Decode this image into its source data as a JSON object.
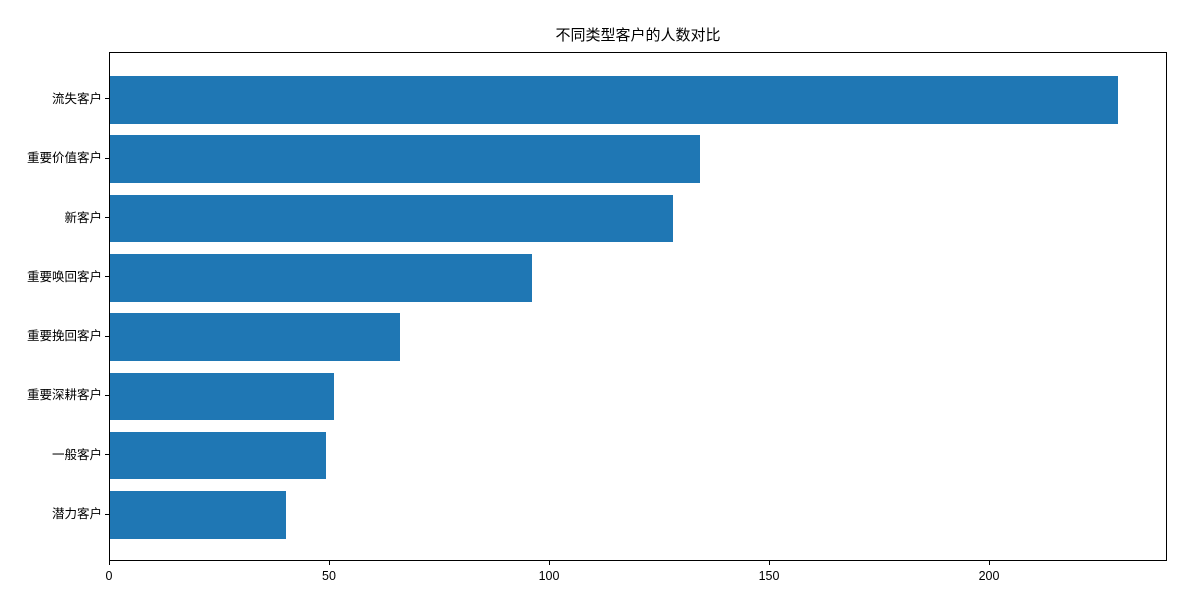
{
  "chart_data": {
    "type": "bar",
    "orientation": "horizontal",
    "title": "不同类型客户的人数对比",
    "categories": [
      "流失客户",
      "重要价值客户",
      "新客户",
      "重要唤回客户",
      "重要挽回客户",
      "重要深耕客户",
      "一般客户",
      "潜力客户"
    ],
    "values": [
      229,
      134,
      128,
      96,
      66,
      51,
      49,
      40
    ],
    "xlabel": "",
    "ylabel": "",
    "xticks": [
      0,
      50,
      100,
      150,
      200
    ],
    "xlim": [
      0,
      240.45
    ],
    "grid": "off",
    "legend": "none",
    "bar_color": "#1f77b4",
    "axis_color": "#000000",
    "background_color": "#ffffff"
  }
}
